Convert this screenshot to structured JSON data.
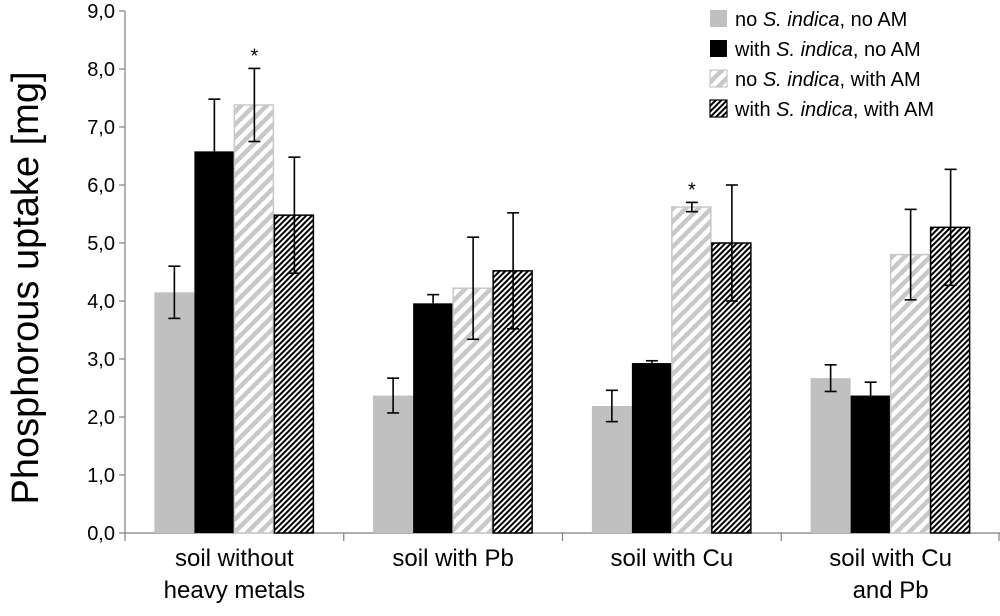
{
  "chart_data": {
    "type": "bar",
    "ylabel": "Phosphorous uptake [mg]",
    "xlabel": "",
    "ylim": [
      0,
      9
    ],
    "yticks": [
      "0,0",
      "1,0",
      "2,0",
      "3,0",
      "4,0",
      "5,0",
      "6,0",
      "7,0",
      "8,0",
      "9,0"
    ],
    "categories": [
      [
        "soil without",
        "heavy metals"
      ],
      [
        "soil with Pb"
      ],
      [
        "soil with Cu"
      ],
      [
        "soil with Cu",
        "and Pb"
      ]
    ],
    "series": [
      {
        "name_parts": [
          "no ",
          "S. indica",
          ", no AM"
        ],
        "style": "solid-gray",
        "values": [
          4.15,
          2.37,
          2.19,
          2.67
        ],
        "errors": [
          0.45,
          0.3,
          0.27,
          0.23
        ]
      },
      {
        "name_parts": [
          "with ",
          "S. indica",
          ", no AM"
        ],
        "style": "solid-black",
        "values": [
          6.58,
          3.96,
          2.93,
          2.37
        ],
        "errors": [
          0.9,
          0.15,
          0.04,
          0.23
        ]
      },
      {
        "name_parts": [
          "no ",
          "S. indica",
          ", with AM"
        ],
        "style": "gray-stripes",
        "values": [
          7.38,
          4.22,
          5.62,
          4.8
        ],
        "errors": [
          0.63,
          0.88,
          0.08,
          0.78
        ]
      },
      {
        "name_parts": [
          "with ",
          "S. indica",
          ", with AM"
        ],
        "style": "black-dense-stripes",
        "values": [
          5.48,
          4.52,
          5.0,
          5.27
        ],
        "errors": [
          1.0,
          1.0,
          1.0,
          1.0
        ]
      }
    ],
    "significance": [
      {
        "category": 0,
        "series": 2,
        "mark": "*"
      },
      {
        "category": 2,
        "series": 2,
        "mark": "*"
      }
    ],
    "legend_position": "top-right",
    "grid": false,
    "colors": {
      "gray": "#c0c0c0",
      "black": "#000000",
      "stripe_gray": "#c8c8c8"
    }
  }
}
